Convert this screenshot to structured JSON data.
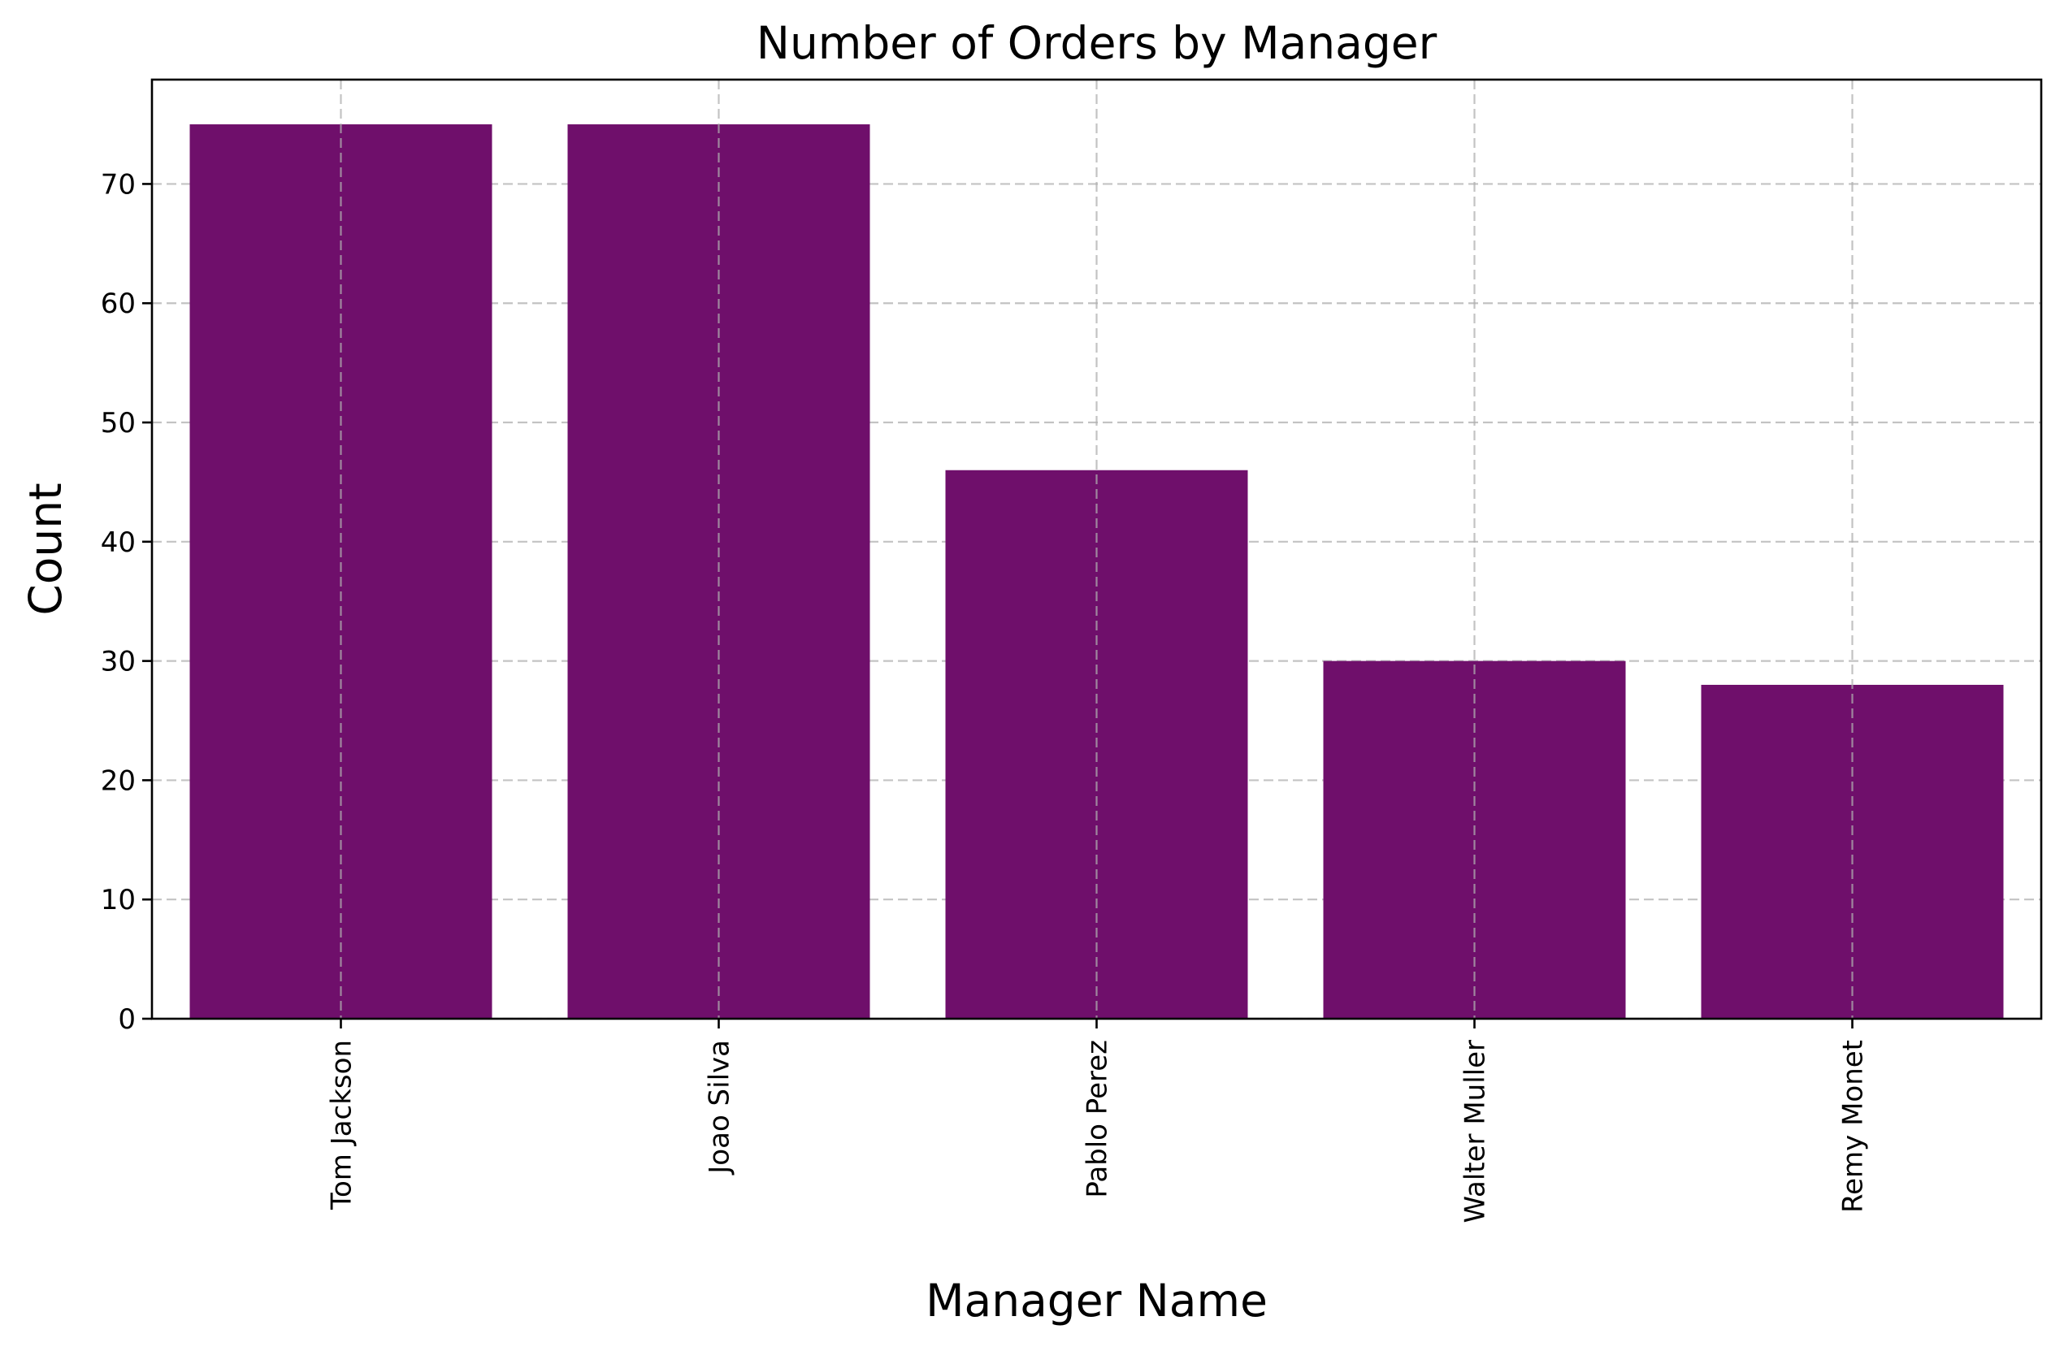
{
  "chart_data": {
    "type": "bar",
    "title": "Number of Orders by Manager",
    "xlabel": "Manager Name",
    "ylabel": "Count",
    "categories": [
      "Tom Jackson",
      "Joao Silva",
      "Pablo Perez",
      "Walter Muller",
      "Remy Monet"
    ],
    "values": [
      75,
      75,
      46,
      30,
      28
    ],
    "ylim": [
      0,
      78.75
    ],
    "yticks": [
      0,
      10,
      20,
      30,
      40,
      50,
      60,
      70
    ],
    "grid": true,
    "grid_style": "dashed",
    "x_tick_rotation": "vertical",
    "bar_color": "#6f0f6b"
  }
}
